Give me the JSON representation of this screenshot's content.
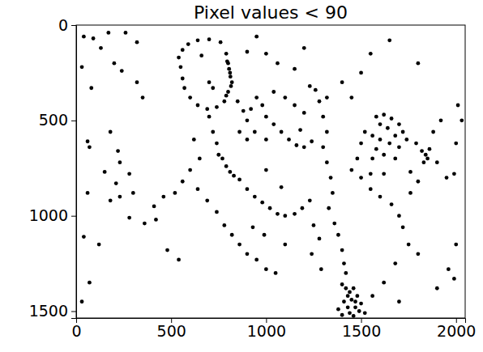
{
  "chart_data": {
    "type": "scatter",
    "title": "Pixel values < 90",
    "color": "#000000",
    "marker": "dot",
    "xlim": [
      0,
      2048
    ],
    "ylim": [
      1536,
      0
    ],
    "xticks": [
      0,
      500,
      1000,
      1500,
      2000
    ],
    "yticks": [
      0,
      500,
      1000,
      1500
    ],
    "x": [
      560,
      590,
      640,
      700,
      760,
      790,
      800,
      810,
      820,
      800,
      780,
      740,
      690,
      640,
      600,
      570,
      560,
      550,
      540,
      700,
      720,
      660,
      795,
      805,
      812,
      815,
      790,
      40,
      90,
      170,
      130,
      260,
      320,
      30,
      200,
      240,
      80,
      320,
      350,
      60,
      70,
      180,
      220,
      150,
      230,
      280,
      210,
      180,
      60,
      230,
      300,
      40,
      120,
      280,
      360,
      410,
      460,
      420,
      70,
      480,
      540,
      30,
      700,
      720,
      740,
      750,
      770,
      790,
      810,
      830,
      860,
      900,
      940,
      980,
      1020,
      1060,
      1100,
      1150,
      1190,
      1230,
      620,
      650,
      600,
      560,
      520,
      640,
      690,
      740,
      780,
      820,
      860,
      900,
      950,
      1000,
      1050,
      930,
      990,
      1100,
      1080,
      1000,
      850,
      880,
      900,
      920,
      950,
      980,
      1000,
      1040,
      1080,
      1120,
      1160,
      1200,
      1240,
      1040,
      1100,
      1150,
      1200,
      1180,
      1000,
      940,
      900,
      860,
      1260,
      1280,
      1320,
      1300,
      1320,
      1300,
      1320,
      1340,
      1350,
      1330,
      1360,
      1380,
      1400,
      1410,
      1420,
      1250,
      1280,
      1240,
      1290,
      1400,
      1420,
      1440,
      1460,
      1480,
      1450,
      1410,
      1430,
      1470,
      1490,
      1440,
      1400,
      1460,
      1500,
      1380,
      1520,
      1430,
      1470,
      1580,
      1620,
      1660,
      1700,
      1720,
      1600,
      1640,
      1680,
      1560,
      1600,
      1650,
      1700,
      1740,
      1580,
      1620,
      1560,
      1680,
      1500,
      1520,
      1480,
      1450,
      1500,
      1550,
      1600,
      1660,
      1700,
      1720,
      1760,
      1800,
      1550,
      1620,
      1820,
      1840,
      1850,
      1830,
      1860,
      1790,
      1900,
      1950,
      1990,
      1880,
      1920,
      2010,
      2030,
      2000,
      1760,
      1750,
      1800,
      1680,
      1960,
      1990,
      1900,
      1620,
      1560,
      1700,
      2000,
      1000,
      1060,
      1150,
      1230,
      900,
      950,
      1200,
      1400,
      1450,
      1500,
      1550,
      1650,
      1800
    ],
    "values": [
      130,
      100,
      80,
      75,
      90,
      150,
      200,
      250,
      300,
      350,
      400,
      430,
      440,
      420,
      380,
      330,
      280,
      220,
      170,
      300,
      330,
      160,
      190,
      230,
      270,
      320,
      370,
      60,
      70,
      40,
      120,
      40,
      90,
      220,
      200,
      240,
      330,
      300,
      380,
      610,
      640,
      560,
      660,
      770,
      720,
      780,
      830,
      920,
      880,
      900,
      880,
      1110,
      1150,
      1010,
      1040,
      950,
      900,
      1020,
      1350,
      1180,
      1230,
      1450,
      480,
      560,
      620,
      680,
      700,
      740,
      770,
      790,
      810,
      860,
      900,
      930,
      960,
      990,
      1000,
      990,
      960,
      920,
      600,
      700,
      760,
      820,
      880,
      860,
      920,
      980,
      1050,
      1100,
      1150,
      1200,
      1230,
      1280,
      1300,
      1060,
      1100,
      1150,
      850,
      760,
      400,
      450,
      500,
      440,
      380,
      420,
      480,
      520,
      560,
      600,
      630,
      640,
      610,
      350,
      380,
      420,
      460,
      550,
      600,
      560,
      600,
      560,
      340,
      400,
      380,
      480,
      560,
      640,
      720,
      800,
      880,
      960,
      1040,
      1100,
      1180,
      1250,
      1300,
      1050,
      1120,
      1200,
      1280,
      1360,
      1380,
      1400,
      1380,
      1420,
      1440,
      1450,
      1480,
      1480,
      1500,
      1510,
      1520,
      1525,
      1460,
      1490,
      1510,
      1420,
      1450,
      480,
      470,
      490,
      520,
      560,
      520,
      540,
      580,
      580,
      600,
      620,
      640,
      600,
      650,
      680,
      700,
      700,
      620,
      560,
      700,
      760,
      800,
      860,
      900,
      940,
      1000,
      1060,
      880,
      820,
      780,
      780,
      660,
      680,
      700,
      720,
      650,
      620,
      720,
      800,
      780,
      560,
      500,
      420,
      500,
      620,
      770,
      1150,
      1200,
      1250,
      1280,
      1330,
      1380,
      1350,
      1420,
      1450,
      1150,
      150,
      200,
      230,
      320,
      140,
      60,
      120,
      300,
      380,
      250,
      150,
      80,
      200
    ]
  }
}
